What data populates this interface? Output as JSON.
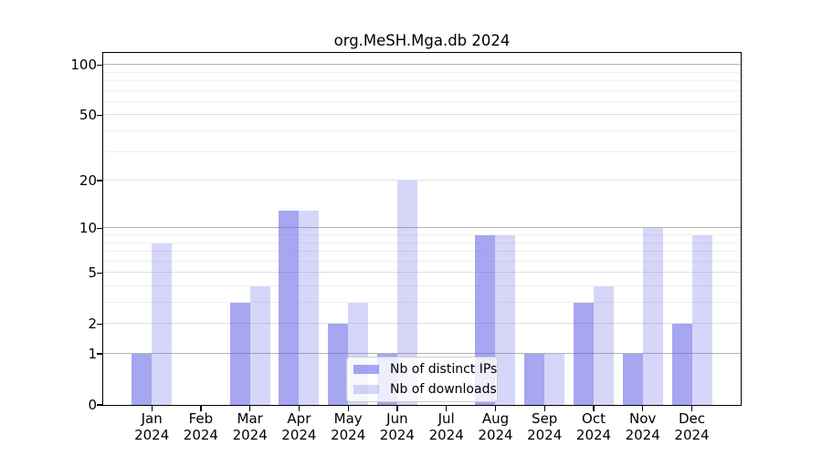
{
  "title": "org.MeSH.Mga.db 2024",
  "legend": {
    "items": [
      {
        "label": "Nb of distinct IPs"
      },
      {
        "label": "Nb of downloads"
      }
    ]
  },
  "colors": {
    "bar_base": "#5C5CE6",
    "bar_ips": "rgba(92,92,230,0.55)",
    "bar_downloads": "rgba(92,92,230,0.25)",
    "grid_decade": "#b3b3b3",
    "grid_major": "#e0e0e0",
    "grid_minor": "#efefef",
    "axis": "#000000"
  },
  "chart_data": {
    "type": "bar",
    "title": "org.MeSH.Mga.db 2024",
    "categories": [
      "Jan 2024",
      "Feb 2024",
      "Mar 2024",
      "Apr 2024",
      "May 2024",
      "Jun 2024",
      "Jul 2024",
      "Aug 2024",
      "Sep 2024",
      "Oct 2024",
      "Nov 2024",
      "Dec 2024"
    ],
    "series": [
      {
        "name": "Nb of distinct IPs",
        "values": [
          1,
          0,
          3,
          13,
          2,
          1,
          0,
          9,
          1,
          3,
          1,
          2
        ]
      },
      {
        "name": "Nb of downloads",
        "values": [
          8,
          0,
          4,
          13,
          3,
          20,
          0,
          9,
          1,
          4,
          10,
          9
        ]
      }
    ],
    "xlabel": "",
    "ylabel": "",
    "y_scale": "log10(1+value)",
    "y_ticks": [
      0,
      1,
      2,
      5,
      10,
      20,
      50,
      100
    ],
    "y_tick_labels": [
      "0",
      "1",
      "2",
      "5",
      "10",
      "20",
      "50",
      "100"
    ],
    "y_minor_ticks": [
      3,
      4,
      6,
      7,
      8,
      9,
      30,
      40,
      60,
      70,
      80,
      90
    ],
    "ylim": [
      0,
      118
    ],
    "grid": true,
    "legend_position": "lower center"
  }
}
